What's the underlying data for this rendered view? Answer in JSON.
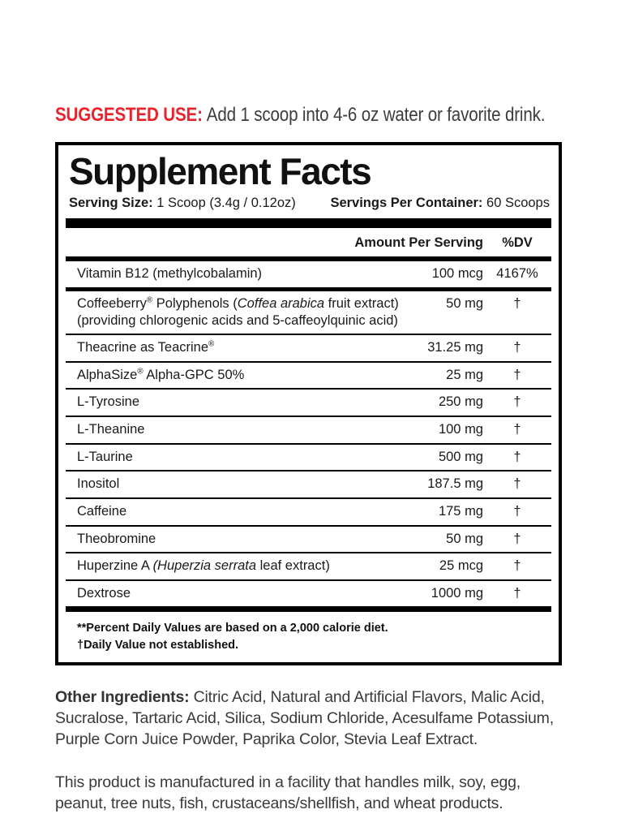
{
  "suggested_use": {
    "label": "SUGGESTED USE:",
    "text": "Add 1 scoop into 4-6 oz water or favorite drink.",
    "label_color": "#e8242c"
  },
  "panel": {
    "title": "Supplement Facts",
    "serving_size_label": "Serving Size:",
    "serving_size_value": "1 Scoop (3.4g / 0.12oz)",
    "servings_label": "Servings Per Container:",
    "servings_value": "60 Scoops",
    "col_amount": "Amount Per Serving",
    "col_dv": "%DV",
    "rows": [
      {
        "name": [
          {
            "t": "Vitamin B12 (methylcobalamin)"
          }
        ],
        "amount": "100 mcg",
        "dv": "4167%"
      },
      {
        "name": [
          {
            "t": "Coffeeberry"
          },
          {
            "t": "®",
            "s": "sup"
          },
          {
            "t": " Polyphenols ("
          },
          {
            "t": "Coffea arabica",
            "s": "i"
          },
          {
            "t": " fruit extract)"
          }
        ],
        "line2": "(providing chlorogenic acids and 5-caffeoylquinic acid)",
        "amount": "50 mg",
        "dv": "†"
      },
      {
        "name": [
          {
            "t": "Theacrine as Teacrine"
          },
          {
            "t": "®",
            "s": "sup"
          }
        ],
        "amount": "31.25 mg",
        "dv": "†"
      },
      {
        "name": [
          {
            "t": "AlphaSize"
          },
          {
            "t": "®",
            "s": "sup"
          },
          {
            "t": " Alpha-GPC 50%"
          }
        ],
        "amount": "25 mg",
        "dv": "†"
      },
      {
        "name": [
          {
            "t": "L-Tyrosine"
          }
        ],
        "amount": "250 mg",
        "dv": "†"
      },
      {
        "name": [
          {
            "t": "L-Theanine"
          }
        ],
        "amount": "100 mg",
        "dv": "†"
      },
      {
        "name": [
          {
            "t": "L-Taurine"
          }
        ],
        "amount": "500 mg",
        "dv": "†"
      },
      {
        "name": [
          {
            "t": "Inositol"
          }
        ],
        "amount": "187.5 mg",
        "dv": "†"
      },
      {
        "name": [
          {
            "t": "Caffeine"
          }
        ],
        "amount": "175 mg",
        "dv": "†"
      },
      {
        "name": [
          {
            "t": "Theobromine"
          }
        ],
        "amount": "50 mg",
        "dv": "†"
      },
      {
        "name": [
          {
            "t": "Huperzine A "
          },
          {
            "t": "(Huperzia serrata",
            "s": "i"
          },
          {
            "t": " leaf extract)"
          }
        ],
        "amount": "25 mcg",
        "dv": "†"
      },
      {
        "name": [
          {
            "t": "Dextrose"
          }
        ],
        "amount": "1000 mg",
        "dv": "†"
      }
    ],
    "footnotes": [
      "**Percent Daily Values are based on a 2,000 calorie diet.",
      "†Daily Value not established."
    ]
  },
  "other_ingredients": {
    "label": "Other Ingredients:",
    "text": "Citric Acid, Natural and Artificial Flavors, Malic Acid, Sucralose, Tartaric Acid, Silica, Sodium Chloride, Acesulfame Potassium, Purple Corn Juice Powder, Paprika Color, Stevia Leaf Extract."
  },
  "allergen": "This product is manufactured in a facility that handles milk, soy, egg, peanut, tree nuts, fish, crustaceans/shellfish, and wheat products."
}
